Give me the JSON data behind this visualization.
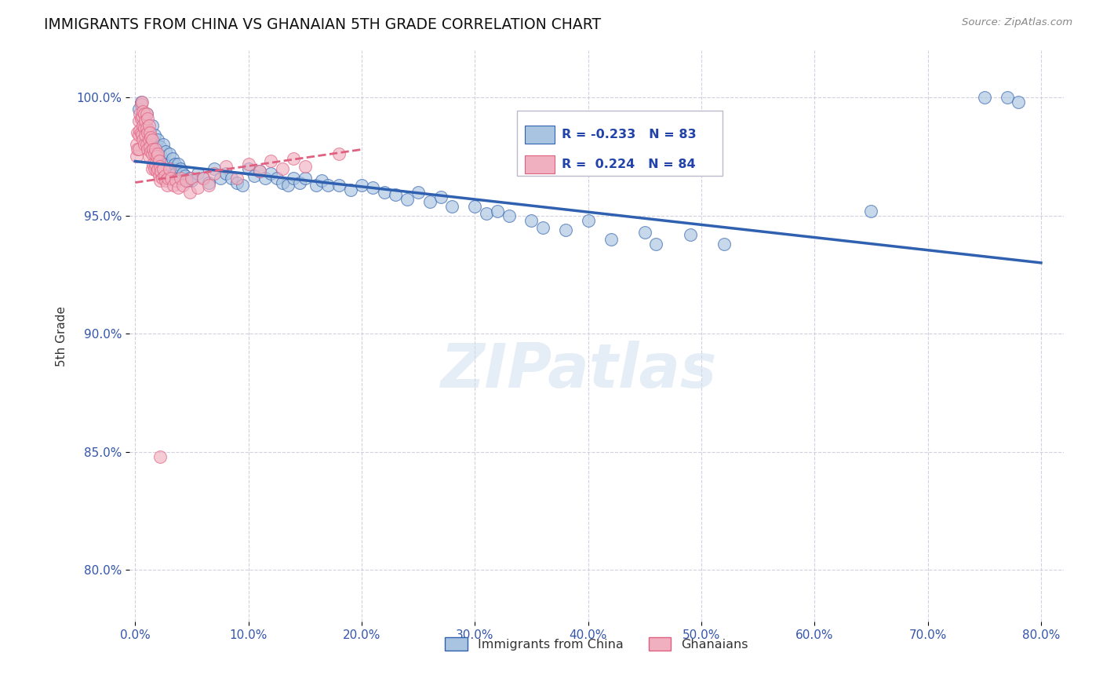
{
  "title": "IMMIGRANTS FROM CHINA VS GHANAIAN 5TH GRADE CORRELATION CHART",
  "source": "Source: ZipAtlas.com",
  "ylabel": "5th Grade",
  "xlabel_ticks": [
    "0.0%",
    "10.0%",
    "20.0%",
    "30.0%",
    "40.0%",
    "50.0%",
    "60.0%",
    "70.0%",
    "80.0%"
  ],
  "ytick_labels": [
    "80.0%",
    "85.0%",
    "90.0%",
    "95.0%",
    "100.0%"
  ],
  "ytick_values": [
    0.8,
    0.85,
    0.9,
    0.95,
    1.0
  ],
  "xtick_values": [
    0.0,
    0.1,
    0.2,
    0.3,
    0.4,
    0.5,
    0.6,
    0.7,
    0.8
  ],
  "xlim": [
    -0.005,
    0.82
  ],
  "ylim": [
    0.778,
    1.02
  ],
  "blue_color": "#a8c4e0",
  "pink_color": "#f0b0c0",
  "blue_line_color": "#3060b0",
  "pink_line_color": "#e06080",
  "legend_R_blue": "-0.233",
  "legend_N_blue": "83",
  "legend_R_pink": "0.224",
  "legend_N_pink": "84",
  "watermark": "ZIPatlas",
  "blue_trend_x0": 0.0,
  "blue_trend_y0": 0.973,
  "blue_trend_x1": 0.8,
  "blue_trend_y1": 0.93,
  "pink_trend_x0": 0.0,
  "pink_trend_y0": 0.964,
  "pink_trend_x1": 0.2,
  "pink_trend_y1": 0.978,
  "blue_scatter_x": [
    0.003,
    0.005,
    0.007,
    0.008,
    0.01,
    0.01,
    0.012,
    0.013,
    0.015,
    0.016,
    0.017,
    0.018,
    0.02,
    0.02,
    0.022,
    0.023,
    0.025,
    0.025,
    0.027,
    0.028,
    0.03,
    0.032,
    0.033,
    0.035,
    0.036,
    0.038,
    0.04,
    0.042,
    0.044,
    0.046,
    0.048,
    0.05,
    0.055,
    0.06,
    0.065,
    0.07,
    0.075,
    0.08,
    0.085,
    0.09,
    0.095,
    0.1,
    0.105,
    0.11,
    0.115,
    0.12,
    0.125,
    0.13,
    0.135,
    0.14,
    0.145,
    0.15,
    0.16,
    0.165,
    0.17,
    0.18,
    0.19,
    0.2,
    0.21,
    0.22,
    0.23,
    0.24,
    0.25,
    0.26,
    0.27,
    0.28,
    0.3,
    0.31,
    0.32,
    0.33,
    0.35,
    0.36,
    0.38,
    0.4,
    0.42,
    0.45,
    0.46,
    0.49,
    0.52,
    0.65,
    0.75,
    0.77,
    0.78
  ],
  "blue_scatter_y": [
    0.995,
    0.998,
    0.99,
    0.985,
    0.993,
    0.987,
    0.985,
    0.982,
    0.988,
    0.98,
    0.984,
    0.978,
    0.982,
    0.976,
    0.979,
    0.975,
    0.98,
    0.973,
    0.977,
    0.972,
    0.976,
    0.97,
    0.974,
    0.972,
    0.968,
    0.972,
    0.97,
    0.968,
    0.967,
    0.965,
    0.966,
    0.965,
    0.968,
    0.966,
    0.964,
    0.97,
    0.966,
    0.968,
    0.966,
    0.964,
    0.963,
    0.97,
    0.967,
    0.969,
    0.966,
    0.968,
    0.966,
    0.964,
    0.963,
    0.966,
    0.964,
    0.966,
    0.963,
    0.965,
    0.963,
    0.963,
    0.961,
    0.963,
    0.962,
    0.96,
    0.959,
    0.957,
    0.96,
    0.956,
    0.958,
    0.954,
    0.954,
    0.951,
    0.952,
    0.95,
    0.948,
    0.945,
    0.944,
    0.948,
    0.94,
    0.943,
    0.938,
    0.942,
    0.938,
    0.952,
    1.0,
    1.0,
    0.998
  ],
  "pink_scatter_x": [
    0.001,
    0.001,
    0.002,
    0.002,
    0.003,
    0.003,
    0.003,
    0.004,
    0.004,
    0.005,
    0.005,
    0.005,
    0.006,
    0.006,
    0.006,
    0.007,
    0.007,
    0.007,
    0.008,
    0.008,
    0.008,
    0.009,
    0.009,
    0.01,
    0.01,
    0.01,
    0.011,
    0.011,
    0.011,
    0.012,
    0.012,
    0.012,
    0.013,
    0.013,
    0.014,
    0.014,
    0.015,
    0.015,
    0.015,
    0.016,
    0.016,
    0.017,
    0.017,
    0.018,
    0.018,
    0.019,
    0.019,
    0.02,
    0.02,
    0.021,
    0.021,
    0.022,
    0.022,
    0.023,
    0.024,
    0.025,
    0.026,
    0.027,
    0.028,
    0.029,
    0.03,
    0.032,
    0.034,
    0.036,
    0.038,
    0.04,
    0.042,
    0.045,
    0.048,
    0.05,
    0.055,
    0.06,
    0.065,
    0.07,
    0.08,
    0.09,
    0.1,
    0.11,
    0.12,
    0.13,
    0.14,
    0.15,
    0.18,
    0.022
  ],
  "pink_scatter_y": [
    0.98,
    0.975,
    0.985,
    0.978,
    0.99,
    0.984,
    0.978,
    0.993,
    0.986,
    0.997,
    0.991,
    0.985,
    0.998,
    0.992,
    0.984,
    0.994,
    0.988,
    0.982,
    0.993,
    0.987,
    0.98,
    0.99,
    0.984,
    0.993,
    0.987,
    0.98,
    0.991,
    0.985,
    0.978,
    0.988,
    0.982,
    0.975,
    0.985,
    0.979,
    0.983,
    0.977,
    0.982,
    0.976,
    0.97,
    0.978,
    0.972,
    0.976,
    0.97,
    0.978,
    0.972,
    0.975,
    0.969,
    0.976,
    0.97,
    0.973,
    0.967,
    0.971,
    0.965,
    0.969,
    0.966,
    0.97,
    0.967,
    0.965,
    0.963,
    0.966,
    0.97,
    0.966,
    0.963,
    0.965,
    0.962,
    0.966,
    0.963,
    0.965,
    0.96,
    0.966,
    0.962,
    0.966,
    0.963,
    0.968,
    0.971,
    0.966,
    0.972,
    0.969,
    0.973,
    0.97,
    0.974,
    0.971,
    0.976,
    0.848
  ]
}
